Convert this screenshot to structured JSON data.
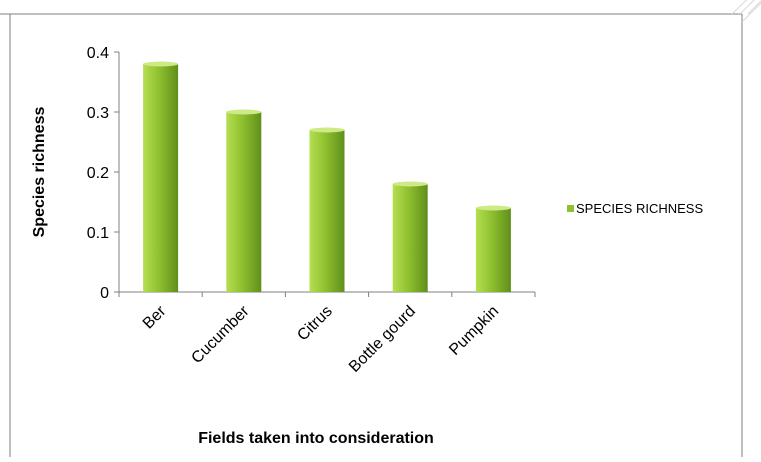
{
  "chart_data": {
    "type": "bar",
    "title": "",
    "xlabel": "Fields taken into consideration",
    "ylabel": "Species richness",
    "categories": [
      "Ber",
      "Cucumber",
      "Citrus",
      "Bottle gourd",
      "Pumpkin"
    ],
    "series": [
      {
        "name": "SPECIES RICHNESS",
        "values": [
          0.38,
          0.3,
          0.27,
          0.18,
          0.14
        ]
      }
    ],
    "ylim": [
      0,
      0.4
    ],
    "yticks": [
      "0",
      "0.1",
      "0.2",
      "0.3",
      "0.4"
    ],
    "grid": false,
    "legend_position": "right",
    "colors": {
      "bar_light": "#b4df50",
      "bar_mid": "#8fc02f",
      "bar_dark": "#5f8f1a",
      "bar_top": "#cdea86",
      "axis": "#808080",
      "frame": "#7f7f7f"
    }
  }
}
